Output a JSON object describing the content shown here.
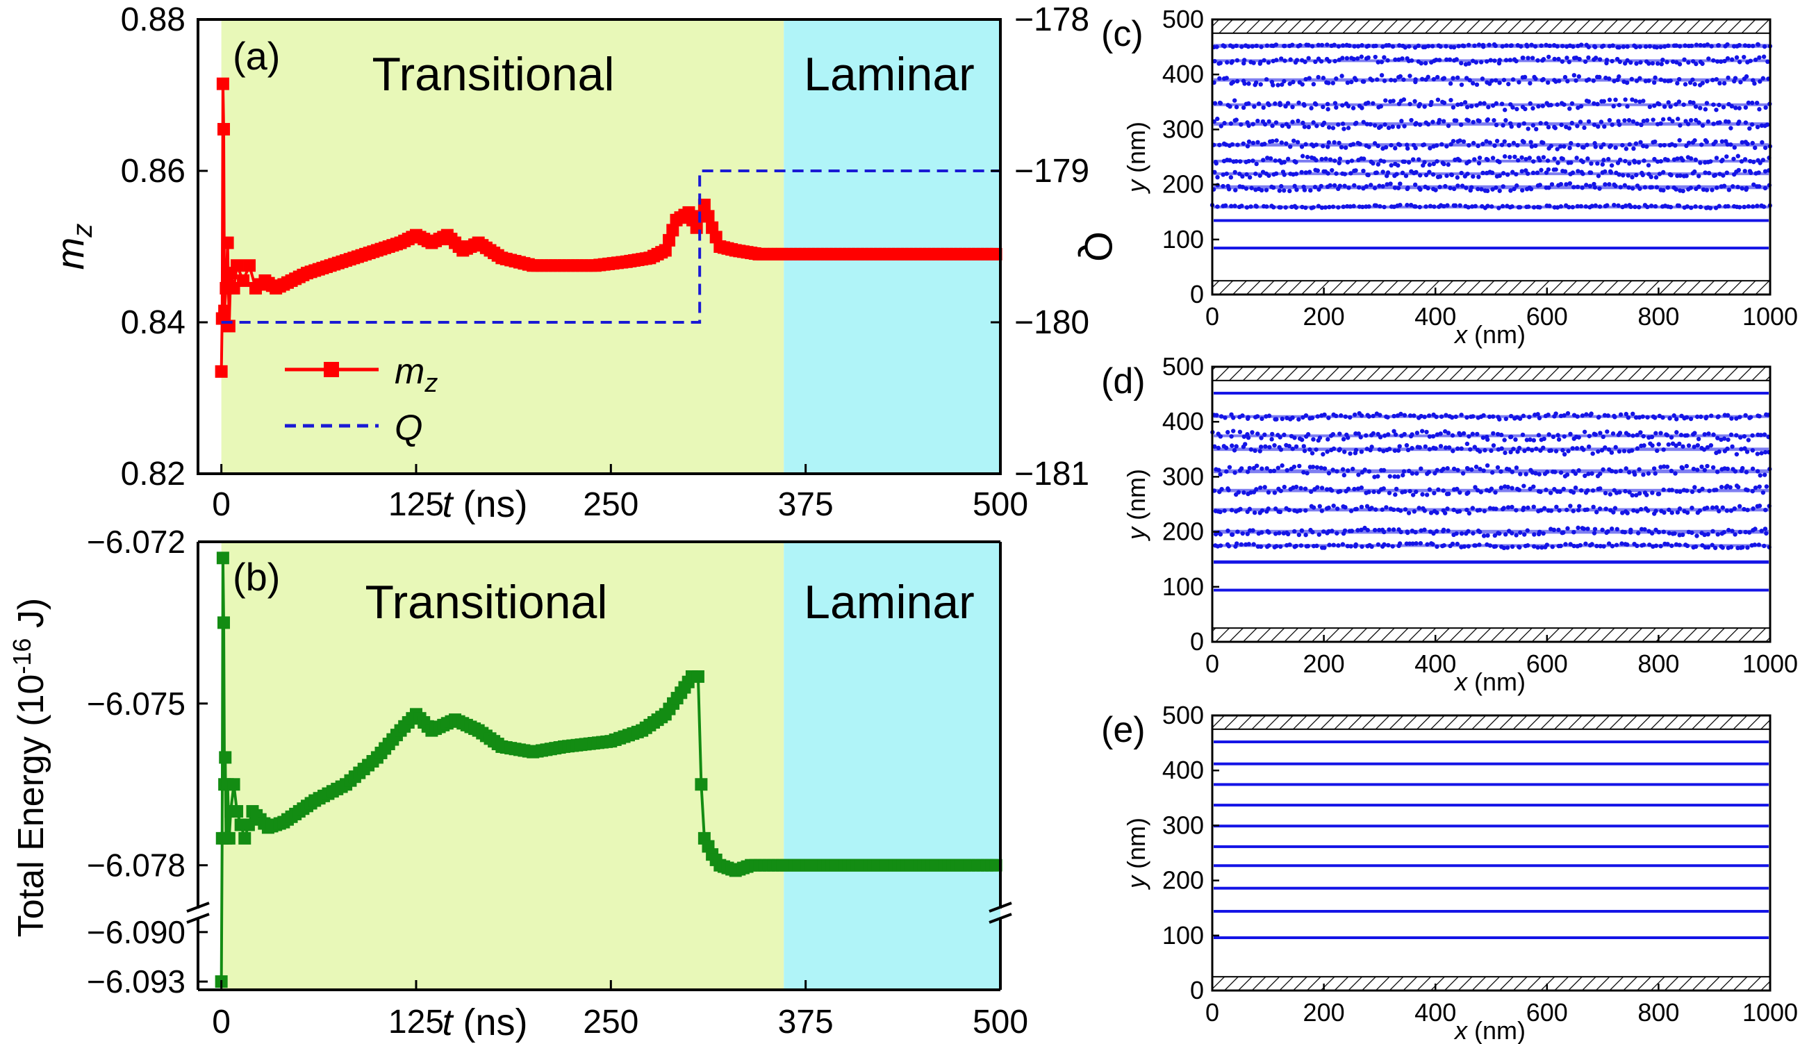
{
  "chart_data": [
    {
      "id": "a",
      "type": "line",
      "panel_label": "(a)",
      "regions": [
        {
          "label": "Transitional",
          "x_range": [
            0,
            361
          ],
          "color": "#e8f8b8"
        },
        {
          "label": "Laminar",
          "x_range": [
            361,
            500
          ],
          "color": "#b0f4f8"
        }
      ],
      "xlabel_var": "t",
      "xlabel_unit": " (ns)",
      "x_ticks": [
        "0",
        "125",
        "250",
        "375",
        "500"
      ],
      "xlim": [
        -15,
        500
      ],
      "ylabel_left": "m",
      "ylabel_left_sub": "z",
      "ylim_left": [
        0.82,
        0.88
      ],
      "y_ticks_left": [
        "0.82",
        "0.84",
        "0.86",
        "0.88"
      ],
      "ylabel_right": "Q",
      "ylim_right": [
        -181,
        -178
      ],
      "y_ticks_right": [
        "−181",
        "−180",
        "−179",
        "−178"
      ],
      "legend": [
        {
          "name": "m",
          "sub": "z",
          "style": "solid-square",
          "color": "#ff0000"
        },
        {
          "name": "Q",
          "sub": "",
          "style": "dashed",
          "color": "#1a1ad4"
        }
      ],
      "legend_position": "bottom-left",
      "series": [
        {
          "name": "mz",
          "axis": "left",
          "color": "#ff0000",
          "x": [
            0,
            0.5,
            1,
            1.5,
            2,
            3,
            4,
            5,
            6,
            8,
            10,
            14,
            18,
            22,
            28,
            35,
            45,
            55,
            70,
            85,
            100,
            115,
            125,
            135,
            145,
            155,
            165,
            180,
            200,
            220,
            240,
            260,
            275,
            285,
            292,
            300,
            305,
            310,
            315,
            320,
            330,
            345,
            360,
            380,
            400,
            420,
            440,
            460,
            480,
            500
          ],
          "y": [
            0.8335,
            0.8405,
            0.8715,
            0.8655,
            0.8415,
            0.8445,
            0.8505,
            0.8395,
            0.8465,
            0.8445,
            0.8475,
            0.8455,
            0.8475,
            0.8445,
            0.8455,
            0.8445,
            0.8455,
            0.8465,
            0.8475,
            0.8485,
            0.8495,
            0.8505,
            0.8515,
            0.8505,
            0.8515,
            0.8495,
            0.8505,
            0.8485,
            0.8475,
            0.8475,
            0.8475,
            0.848,
            0.8485,
            0.8495,
            0.8535,
            0.8545,
            0.8525,
            0.8555,
            0.8525,
            0.85,
            0.8495,
            0.849,
            0.849,
            0.849,
            0.849,
            0.849,
            0.849,
            0.849,
            0.849,
            0.849
          ]
        },
        {
          "name": "Q",
          "axis": "right",
          "color": "#1a1ad4",
          "dashed": true,
          "x": [
            0,
            307,
            307,
            500
          ],
          "y": [
            -180,
            -180,
            -179,
            -179
          ]
        }
      ]
    },
    {
      "id": "b",
      "type": "line",
      "panel_label": "(b)",
      "regions": [
        {
          "label": "Transitional",
          "x_range": [
            0,
            361
          ],
          "color": "#e8f8b8"
        },
        {
          "label": "Laminar",
          "x_range": [
            361,
            500
          ],
          "color": "#b0f4f8"
        }
      ],
      "xlabel_var": "t",
      "xlabel_unit": " (ns)",
      "x_ticks": [
        "0",
        "125",
        "250",
        "375",
        "500"
      ],
      "xlim": [
        -15,
        500
      ],
      "ylabel": "Total Energy (10",
      "ylabel_sup": "-16",
      "ylabel_end": " J)",
      "y_ticks": [
        "−6.072",
        "−6.075",
        "−6.078",
        "−6.090",
        "−6.093"
      ],
      "axis_break": {
        "lower_range": [
          -6.0935,
          -6.0895
        ],
        "upper_range": [
          -6.0787,
          -6.072
        ]
      },
      "series": [
        {
          "name": "Total Energy",
          "color": "#138c13",
          "x": [
            0,
            0.5,
            1,
            1.5,
            2,
            2.5,
            3,
            4,
            5,
            6,
            8,
            10,
            15,
            20,
            30,
            40,
            50,
            60,
            80,
            100,
            115,
            125,
            135,
            150,
            165,
            180,
            200,
            220,
            250,
            270,
            285,
            295,
            302,
            306,
            308,
            310,
            315,
            320,
            330,
            340,
            360,
            400,
            440,
            480,
            500
          ],
          "y": [
            -6.093,
            -6.0775,
            -6.0723,
            -6.0735,
            -6.0765,
            -6.076,
            -6.0775,
            -6.0765,
            -6.0775,
            -6.077,
            -6.0765,
            -6.077,
            -6.0775,
            -6.077,
            -6.0773,
            -6.0772,
            -6.077,
            -6.0768,
            -6.0765,
            -6.076,
            -6.0755,
            -6.0752,
            -6.0755,
            -6.0753,
            -6.0755,
            -6.0758,
            -6.0759,
            -6.0758,
            -6.0757,
            -6.0755,
            -6.0752,
            -6.0748,
            -6.0745,
            -6.0745,
            -6.0765,
            -6.0775,
            -6.0778,
            -6.078,
            -6.0781,
            -6.078,
            -6.078,
            -6.078,
            -6.078,
            -6.078,
            -6.078
          ]
        }
      ]
    },
    {
      "id": "c",
      "type": "scatter",
      "panel_label": "(c)",
      "xlabel_var": "x",
      "xlabel_unit": " (nm)",
      "ylabel_var": "y",
      "ylabel_unit": " (nm)",
      "xlim": [
        0,
        1000
      ],
      "ylim": [
        0,
        500
      ],
      "x_ticks": [
        "0",
        "200",
        "400",
        "600",
        "800",
        "1000"
      ],
      "y_ticks": [
        "0",
        "100",
        "200",
        "300",
        "400",
        "500"
      ],
      "walls": {
        "bottom": [
          0,
          25
        ],
        "top": [
          475,
          500
        ]
      },
      "bands": [
        {
          "y": 85,
          "thickness": 4,
          "noise": 0.3
        },
        {
          "y": 135,
          "thickness": 4,
          "noise": 0.6
        },
        {
          "y": 160,
          "thickness": 3,
          "noise": 2
        },
        {
          "y": 195,
          "thickness": 7,
          "noise": 5
        },
        {
          "y": 220,
          "thickness": 4,
          "noise": 5
        },
        {
          "y": 243,
          "thickness": 4,
          "noise": 6
        },
        {
          "y": 272,
          "thickness": 6,
          "noise": 6
        },
        {
          "y": 310,
          "thickness": 6,
          "noise": 7
        },
        {
          "y": 345,
          "thickness": 5,
          "noise": 7
        },
        {
          "y": 390,
          "thickness": 6,
          "noise": 7
        },
        {
          "y": 425,
          "thickness": 5,
          "noise": 5
        },
        {
          "y": 452,
          "thickness": 7,
          "noise": 2
        }
      ]
    },
    {
      "id": "d",
      "type": "scatter",
      "panel_label": "(d)",
      "xlabel_var": "x",
      "xlabel_unit": " (nm)",
      "ylabel_var": "y",
      "ylabel_unit": " (nm)",
      "xlim": [
        0,
        1000
      ],
      "ylim": [
        0,
        500
      ],
      "x_ticks": [
        "0",
        "200",
        "400",
        "600",
        "800",
        "1000"
      ],
      "y_ticks": [
        "0",
        "100",
        "200",
        "300",
        "400",
        "500"
      ],
      "walls": {
        "bottom": [
          0,
          25
        ],
        "top": [
          475,
          500
        ]
      },
      "bands": [
        {
          "y": 95,
          "thickness": 3,
          "noise": 0.3
        },
        {
          "y": 145,
          "thickness": 6,
          "noise": 1
        },
        {
          "y": 175,
          "thickness": 5,
          "noise": 3
        },
        {
          "y": 200,
          "thickness": 7,
          "noise": 5
        },
        {
          "y": 240,
          "thickness": 6,
          "noise": 5
        },
        {
          "y": 275,
          "thickness": 6,
          "noise": 6
        },
        {
          "y": 310,
          "thickness": 7,
          "noise": 7
        },
        {
          "y": 350,
          "thickness": 6,
          "noise": 7
        },
        {
          "y": 375,
          "thickness": 4,
          "noise": 6
        },
        {
          "y": 410,
          "thickness": 4,
          "noise": 4
        },
        {
          "y": 452,
          "thickness": 5,
          "noise": 1
        }
      ]
    },
    {
      "id": "e",
      "type": "scatter",
      "panel_label": "(e)",
      "xlabel_var": "x",
      "xlabel_unit": " (nm)",
      "ylabel_var": "y",
      "ylabel_unit": " (nm)",
      "xlim": [
        0,
        1000
      ],
      "ylim": [
        0,
        500
      ],
      "x_ticks": [
        "0",
        "200",
        "400",
        "600",
        "800",
        "1000"
      ],
      "y_ticks": [
        "0",
        "100",
        "200",
        "300",
        "400",
        "500"
      ],
      "walls": {
        "bottom": [
          0,
          25
        ],
        "top": [
          475,
          500
        ]
      },
      "bands": [
        {
          "y": 97,
          "thickness": 3,
          "noise": 0.2
        },
        {
          "y": 145,
          "thickness": 3,
          "noise": 0.3
        },
        {
          "y": 187,
          "thickness": 3,
          "noise": 0.3
        },
        {
          "y": 228,
          "thickness": 3,
          "noise": 0.4
        },
        {
          "y": 262,
          "thickness": 4,
          "noise": 0.5
        },
        {
          "y": 300,
          "thickness": 3,
          "noise": 0.5
        },
        {
          "y": 338,
          "thickness": 3,
          "noise": 0.5
        },
        {
          "y": 375,
          "thickness": 4,
          "noise": 0.6
        },
        {
          "y": 413,
          "thickness": 3,
          "noise": 0.6
        },
        {
          "y": 453,
          "thickness": 3,
          "noise": 0.4
        }
      ]
    }
  ]
}
